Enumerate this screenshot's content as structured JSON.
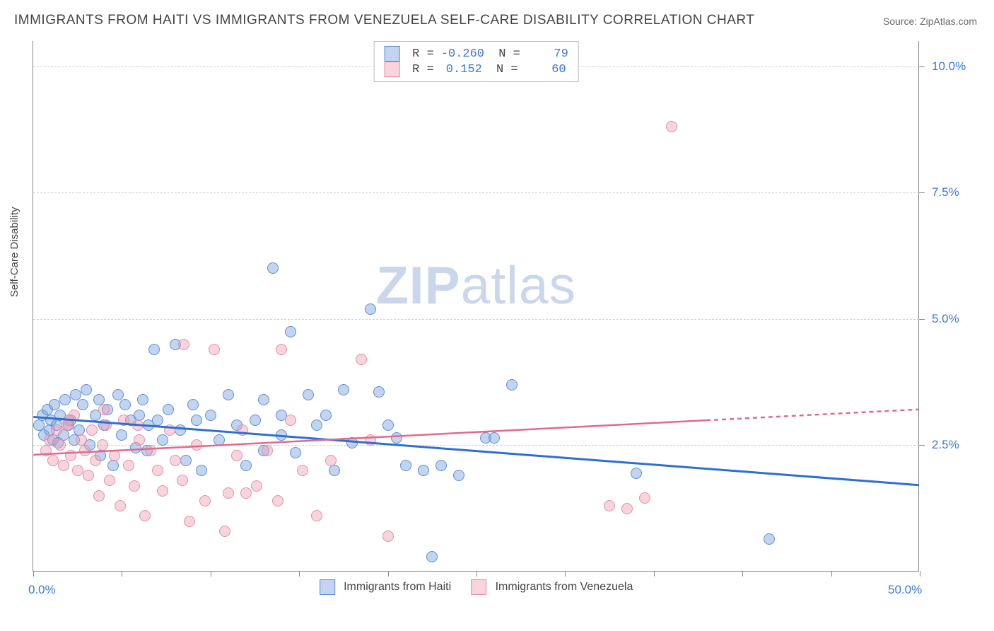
{
  "title": "IMMIGRANTS FROM HAITI VS IMMIGRANTS FROM VENEZUELA SELF-CARE DISABILITY CORRELATION CHART",
  "source_prefix": "Source: ",
  "source": "ZipAtlas.com",
  "ylabel": "Self-Care Disability",
  "watermark_a": "ZIP",
  "watermark_b": "atlas",
  "chart": {
    "type": "scatter",
    "xlim": [
      0,
      50
    ],
    "ylim": [
      0,
      10.5
    ],
    "x_ticks_minor": [
      0,
      5,
      10,
      15,
      20,
      25,
      30,
      35,
      40,
      45,
      50
    ],
    "x_tick_labels": [
      {
        "v": 0,
        "label": "0.0%"
      },
      {
        "v": 50,
        "label": "50.0%"
      }
    ],
    "y_grid": [
      2.5,
      5.0,
      7.5,
      10.0
    ],
    "y_tick_labels": [
      {
        "v": 2.5,
        "label": "2.5%"
      },
      {
        "v": 5.0,
        "label": "5.0%"
      },
      {
        "v": 7.5,
        "label": "7.5%"
      },
      {
        "v": 10.0,
        "label": "10.0%"
      }
    ],
    "background_color": "#ffffff",
    "grid_color": "#d0d0d0",
    "series": [
      {
        "id": "haiti",
        "label": "Immigrants from Haiti",
        "color_fill": "rgba(120,160,220,0.45)",
        "color_stroke": "#5c8fd6",
        "marker_radius": 8,
        "R": "-0.260",
        "N": "79",
        "trend": {
          "y_at_x0": 3.05,
          "y_at_x50": 1.7,
          "color": "#2e6fd0",
          "width": 3,
          "solid_to_x": 50
        },
        "points": [
          [
            0.3,
            2.9
          ],
          [
            0.5,
            3.1
          ],
          [
            0.6,
            2.7
          ],
          [
            0.8,
            3.2
          ],
          [
            0.9,
            2.8
          ],
          [
            1.0,
            3.0
          ],
          [
            1.1,
            2.6
          ],
          [
            1.2,
            3.3
          ],
          [
            1.3,
            2.9
          ],
          [
            1.4,
            2.55
          ],
          [
            1.5,
            3.1
          ],
          [
            1.7,
            2.7
          ],
          [
            1.8,
            3.4
          ],
          [
            2.0,
            2.9
          ],
          [
            2.1,
            3.0
          ],
          [
            2.3,
            2.6
          ],
          [
            2.4,
            3.5
          ],
          [
            2.6,
            2.8
          ],
          [
            2.8,
            3.3
          ],
          [
            3.0,
            3.6
          ],
          [
            3.2,
            2.5
          ],
          [
            3.5,
            3.1
          ],
          [
            3.7,
            3.4
          ],
          [
            3.8,
            2.3
          ],
          [
            4.0,
            2.9
          ],
          [
            4.2,
            3.2
          ],
          [
            4.5,
            2.1
          ],
          [
            4.8,
            3.5
          ],
          [
            5.0,
            2.7
          ],
          [
            5.2,
            3.3
          ],
          [
            5.5,
            3.0
          ],
          [
            5.8,
            2.45
          ],
          [
            6.0,
            3.1
          ],
          [
            6.2,
            3.4
          ],
          [
            6.5,
            2.9
          ],
          [
            6.8,
            4.4
          ],
          [
            7.0,
            3.0
          ],
          [
            7.3,
            2.6
          ],
          [
            7.6,
            3.2
          ],
          [
            8.0,
            4.5
          ],
          [
            8.3,
            2.8
          ],
          [
            8.6,
            2.2
          ],
          [
            9.0,
            3.3
          ],
          [
            9.2,
            3.0
          ],
          [
            9.5,
            2.0
          ],
          [
            10.0,
            3.1
          ],
          [
            10.5,
            2.6
          ],
          [
            11.0,
            3.5
          ],
          [
            11.5,
            2.9
          ],
          [
            12.0,
            2.1
          ],
          [
            12.5,
            3.0
          ],
          [
            13.0,
            3.4
          ],
          [
            13.5,
            6.0
          ],
          [
            13.0,
            2.4
          ],
          [
            14.0,
            2.7
          ],
          [
            14.5,
            4.75
          ],
          [
            14.8,
            2.35
          ],
          [
            15.5,
            3.5
          ],
          [
            16.0,
            2.9
          ],
          [
            16.5,
            3.1
          ],
          [
            17.0,
            2.0
          ],
          [
            17.5,
            3.6
          ],
          [
            18.0,
            2.55
          ],
          [
            19.0,
            5.2
          ],
          [
            19.5,
            3.55
          ],
          [
            20.0,
            2.9
          ],
          [
            20.5,
            2.65
          ],
          [
            21.0,
            2.1
          ],
          [
            22.0,
            2.0
          ],
          [
            22.5,
            0.3
          ],
          [
            25.5,
            2.65
          ],
          [
            26.0,
            2.65
          ],
          [
            27.0,
            3.7
          ],
          [
            23.0,
            2.1
          ],
          [
            24.0,
            1.9
          ],
          [
            34.0,
            1.95
          ],
          [
            41.5,
            0.65
          ],
          [
            14.0,
            3.1
          ],
          [
            6.4,
            2.4
          ]
        ]
      },
      {
        "id": "venezuela",
        "label": "Immigrants from Venezuela",
        "color_fill": "rgba(240,160,180,0.45)",
        "color_stroke": "#e38fa8",
        "marker_radius": 8,
        "R": "0.152",
        "N": "60",
        "trend": {
          "y_at_x0": 2.3,
          "y_at_x50": 3.2,
          "color": "#e06a8c",
          "width": 2.5,
          "solid_to_x": 38
        },
        "points": [
          [
            0.7,
            2.4
          ],
          [
            0.9,
            2.6
          ],
          [
            1.1,
            2.2
          ],
          [
            1.3,
            2.8
          ],
          [
            1.5,
            2.5
          ],
          [
            1.7,
            2.1
          ],
          [
            1.9,
            2.9
          ],
          [
            2.1,
            2.3
          ],
          [
            2.3,
            3.1
          ],
          [
            2.5,
            2.0
          ],
          [
            2.7,
            2.6
          ],
          [
            2.9,
            2.4
          ],
          [
            3.1,
            1.9
          ],
          [
            3.3,
            2.8
          ],
          [
            3.5,
            2.2
          ],
          [
            3.7,
            1.5
          ],
          [
            3.9,
            2.5
          ],
          [
            4.1,
            2.9
          ],
          [
            4.3,
            1.8
          ],
          [
            4.6,
            2.3
          ],
          [
            4.9,
            1.3
          ],
          [
            5.1,
            3.0
          ],
          [
            5.4,
            2.1
          ],
          [
            5.7,
            1.7
          ],
          [
            6.0,
            2.6
          ],
          [
            6.3,
            1.1
          ],
          [
            6.6,
            2.4
          ],
          [
            7.0,
            2.0
          ],
          [
            7.3,
            1.6
          ],
          [
            7.7,
            2.8
          ],
          [
            8.0,
            2.2
          ],
          [
            8.4,
            1.8
          ],
          [
            8.5,
            4.5
          ],
          [
            9.2,
            2.5
          ],
          [
            9.7,
            1.4
          ],
          [
            10.2,
            4.4
          ],
          [
            10.8,
            0.8
          ],
          [
            11.0,
            1.55
          ],
          [
            11.5,
            2.3
          ],
          [
            12.0,
            1.55
          ],
          [
            12.6,
            1.7
          ],
          [
            13.2,
            2.4
          ],
          [
            13.8,
            1.4
          ],
          [
            14.0,
            4.4
          ],
          [
            14.5,
            3.0
          ],
          [
            15.2,
            2.0
          ],
          [
            16.0,
            1.1
          ],
          [
            16.8,
            2.2
          ],
          [
            18.5,
            4.2
          ],
          [
            20.0,
            0.7
          ],
          [
            19.0,
            2.6
          ],
          [
            32.5,
            1.3
          ],
          [
            33.5,
            1.25
          ],
          [
            34.5,
            1.45
          ],
          [
            36.0,
            8.8
          ],
          [
            8.8,
            1.0
          ],
          [
            11.8,
            2.8
          ],
          [
            5.9,
            2.9
          ],
          [
            4.0,
            3.2
          ],
          [
            2.0,
            3.0
          ]
        ]
      }
    ]
  },
  "legend": {
    "swatch_border_blue": "#5c8fd6",
    "swatch_fill_blue": "rgba(120,160,220,0.45)",
    "swatch_border_pink": "#e38fa8",
    "swatch_fill_pink": "rgba(240,160,180,0.45)"
  }
}
